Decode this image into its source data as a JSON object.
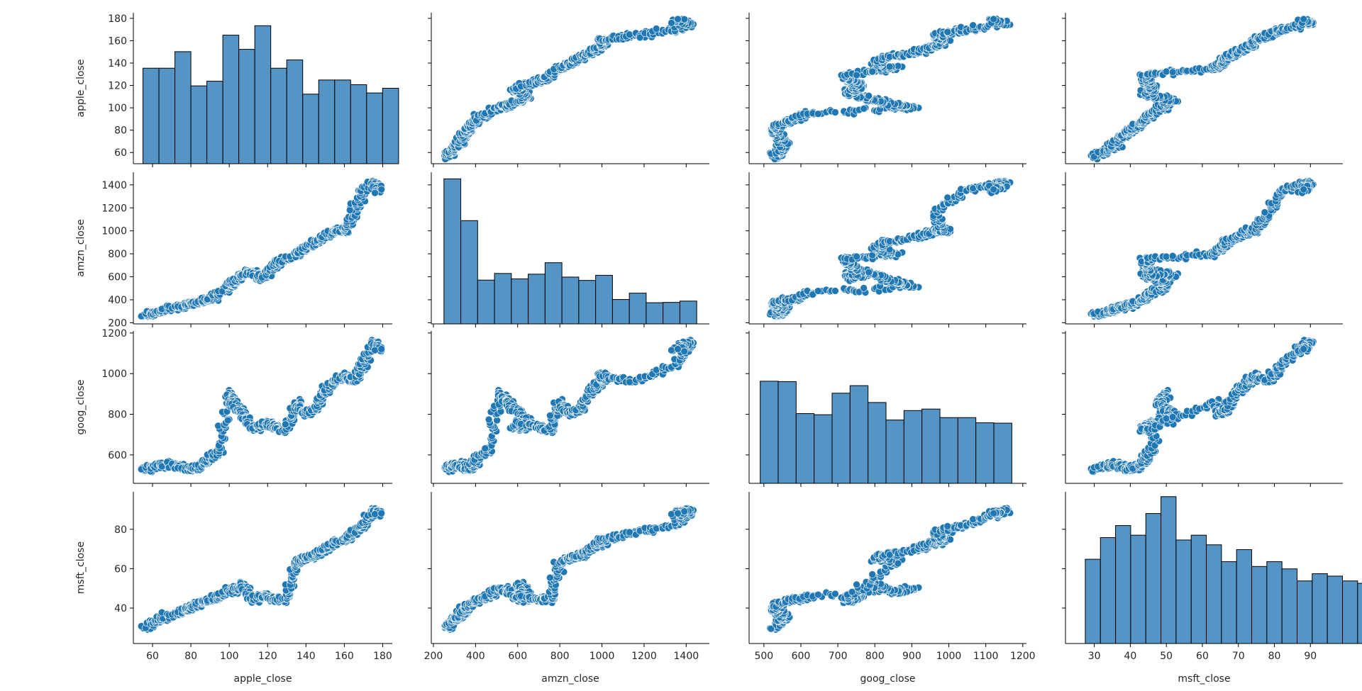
{
  "chart_data": {
    "type": "scatter",
    "variables": [
      "apple_close",
      "amzn_close",
      "goog_close",
      "msft_close"
    ],
    "ranges": {
      "apple_close": [
        50,
        185
      ],
      "amzn_close": [
        190,
        1510
      ],
      "goog_close": [
        460,
        1210
      ],
      "msft_close": [
        22,
        99
      ]
    },
    "ticks": {
      "apple_close": [
        60,
        80,
        100,
        120,
        140,
        160,
        180
      ],
      "amzn_close": [
        200,
        400,
        600,
        800,
        1000,
        1200,
        1400
      ],
      "goog_close": [
        500,
        600,
        700,
        800,
        900,
        1000,
        1100,
        1200
      ],
      "msft_close": [
        30,
        40,
        50,
        60,
        70,
        80,
        90
      ]
    },
    "y_ticks": {
      "apple_close": [
        60,
        80,
        100,
        120,
        140,
        160,
        180
      ],
      "amzn_close": [
        200,
        400,
        600,
        800,
        1000,
        1200,
        1400
      ],
      "goog_close": [
        600,
        800,
        1000,
        1200
      ],
      "msft_close": [
        40,
        60,
        80
      ]
    },
    "histograms": {
      "apple_close": {
        "start": 55,
        "width": 8.33,
        "counts": [
          81,
          81,
          95,
          66,
          70,
          109,
          97,
          117,
          81,
          88,
          59,
          71,
          71,
          67,
          60,
          64
        ],
        "max": 128
      },
      "amzn_close": {
        "start": 250,
        "width": 80,
        "counts": [
          1444,
          1028,
          436,
          502,
          448,
          495,
          609,
          466,
          433,
          484,
          243,
          306,
          211,
          214,
          227
        ],
        "max": 1510
      },
      "goog_close": {
        "start": 490,
        "width": 48.6,
        "counts": [
          811,
          808,
          554,
          545,
          716,
          776,
          642,
          503,
          578,
          590,
          522,
          522,
          481,
          478
        ],
        "max": 1210
      },
      "msft_close": {
        "start": 27.5,
        "width": 4.2,
        "counts": [
          35,
          44,
          49,
          45,
          54,
          61,
          43,
          45,
          41,
          34,
          39,
          32,
          34,
          31,
          26,
          29,
          28,
          26,
          25
        ],
        "max": 63
      }
    },
    "anchors": {
      "apple_close": [
        55,
        62,
        68,
        75,
        80,
        84,
        90,
        95,
        100,
        103,
        107,
        112,
        116,
        120,
        125,
        130,
        135,
        140,
        145,
        150,
        155,
        160,
        165,
        170,
        175,
        178
      ],
      "amzn_close": [
        255,
        290,
        320,
        340,
        360,
        380,
        400,
        460,
        520,
        560,
        620,
        640,
        580,
        620,
        720,
        760,
        800,
        850,
        900,
        950,
        1000,
        1000,
        1150,
        1350,
        1420,
        1350
      ],
      "goog_close": [
        530,
        545,
        555,
        540,
        525,
        540,
        580,
        620,
        900,
        850,
        800,
        730,
        740,
        760,
        730,
        720,
        860,
        800,
        830,
        920,
        960,
        990,
        960,
        1040,
        1160,
        1120
      ],
      "msft_close": [
        30,
        33,
        36,
        38,
        40,
        42,
        44,
        46,
        50,
        48,
        52,
        44,
        46,
        46,
        44,
        45,
        63,
        65,
        67,
        70,
        73,
        75,
        78,
        82,
        90,
        88
      ]
    },
    "xlabel": [
      "apple_close",
      "amzn_close",
      "goog_close",
      "msft_close"
    ],
    "ylabel": [
      "apple_close",
      "amzn_close",
      "goog_close",
      "msft_close"
    ],
    "grid": false
  }
}
